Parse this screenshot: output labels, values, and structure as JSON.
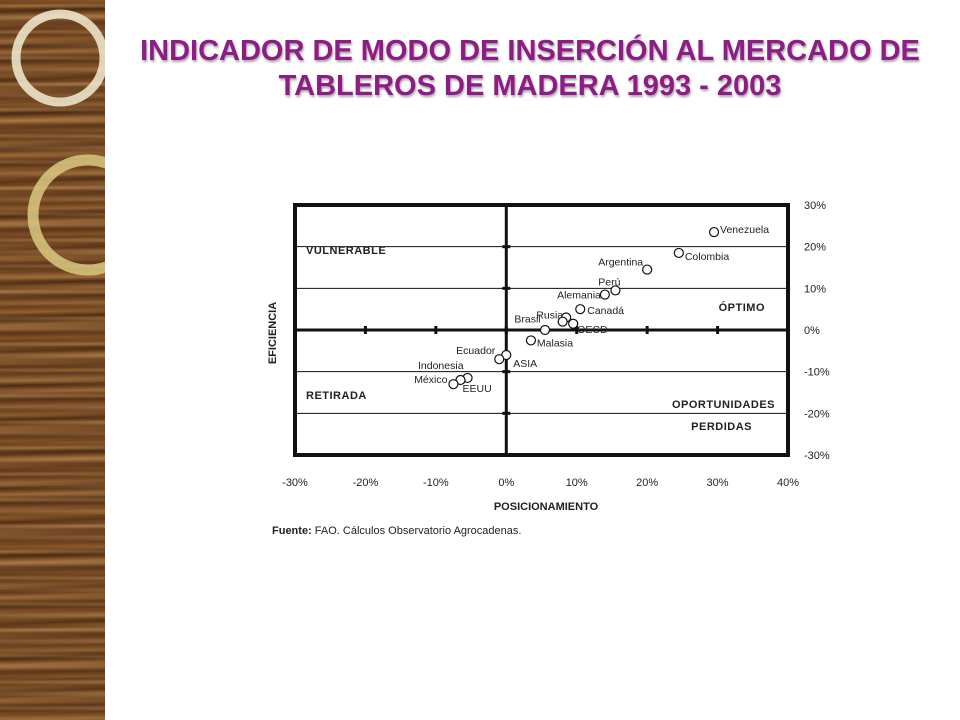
{
  "slide": {
    "title": "INDICADOR DE MODO DE INSERCIÓN AL MERCADO DE TABLEROS DE MADERA 1993 - 2003",
    "accent_color": "#8e1b86",
    "decoration": "wood-grain-panel-with-rings"
  },
  "chart_data": {
    "type": "scatter",
    "xlabel": "POSICIONAMIENTO",
    "ylabel": "EFICIENCIA",
    "xlim": [
      -30,
      40
    ],
    "ylim": [
      -30,
      30
    ],
    "x_ticks": [
      "-30%",
      "-20%",
      "-10%",
      "0%",
      "10%",
      "20%",
      "30%",
      "40%"
    ],
    "x_tick_values": [
      -30,
      -20,
      -10,
      0,
      10,
      20,
      30,
      40
    ],
    "y_ticks": [
      "30%",
      "20%",
      "10%",
      "0%",
      "-10%",
      "-20%",
      "-30%"
    ],
    "y_tick_values": [
      30,
      20,
      10,
      0,
      -10,
      -20,
      -30
    ],
    "y_axis_side": "right",
    "grid": "horizontal",
    "quadrants": [
      {
        "label": "VULNERABLE",
        "position": "top-left"
      },
      {
        "label": "ÓPTIMO",
        "position": "right-middle"
      },
      {
        "label": "RETIRADA",
        "position": "bottom-left"
      },
      {
        "label": "OPORTUNIDADES",
        "position": "bottom-right"
      },
      {
        "label": "PERDIDAS",
        "position": "bottom-right"
      }
    ],
    "points": [
      {
        "label": "Venezuela",
        "x": 29.5,
        "y": 23.5
      },
      {
        "label": "Colombia",
        "x": 24.5,
        "y": 18.5
      },
      {
        "label": "Argentina",
        "x": 20,
        "y": 14.5
      },
      {
        "label": "Perú",
        "x": 15.5,
        "y": 9.5
      },
      {
        "label": "Alemania",
        "x": 14,
        "y": 8.5
      },
      {
        "label": "Canadá",
        "x": 10.5,
        "y": 5
      },
      {
        "label": "Rusia",
        "x": 8.5,
        "y": 3
      },
      {
        "label": "OECD",
        "x": 9.5,
        "y": 1.5
      },
      {
        "label": "Brasil",
        "x": 8,
        "y": 2
      },
      {
        "label": "Malasia",
        "x": 3.5,
        "y": -2.5
      },
      {
        "label": "Malasia",
        "x": 5.5,
        "y": 0
      },
      {
        "label": "Ecuador",
        "x": 0,
        "y": -6
      },
      {
        "label": "ASIA",
        "x": -1,
        "y": -7
      },
      {
        "label": "Indonesia",
        "x": -5.5,
        "y": -11.5
      },
      {
        "label": "EEUU",
        "x": -6.5,
        "y": -12
      },
      {
        "label": "México",
        "x": -7.5,
        "y": -13
      }
    ],
    "source_label": "Fuente:",
    "source_text": " FAO. Cálculos Observatorio Agrocadenas."
  }
}
